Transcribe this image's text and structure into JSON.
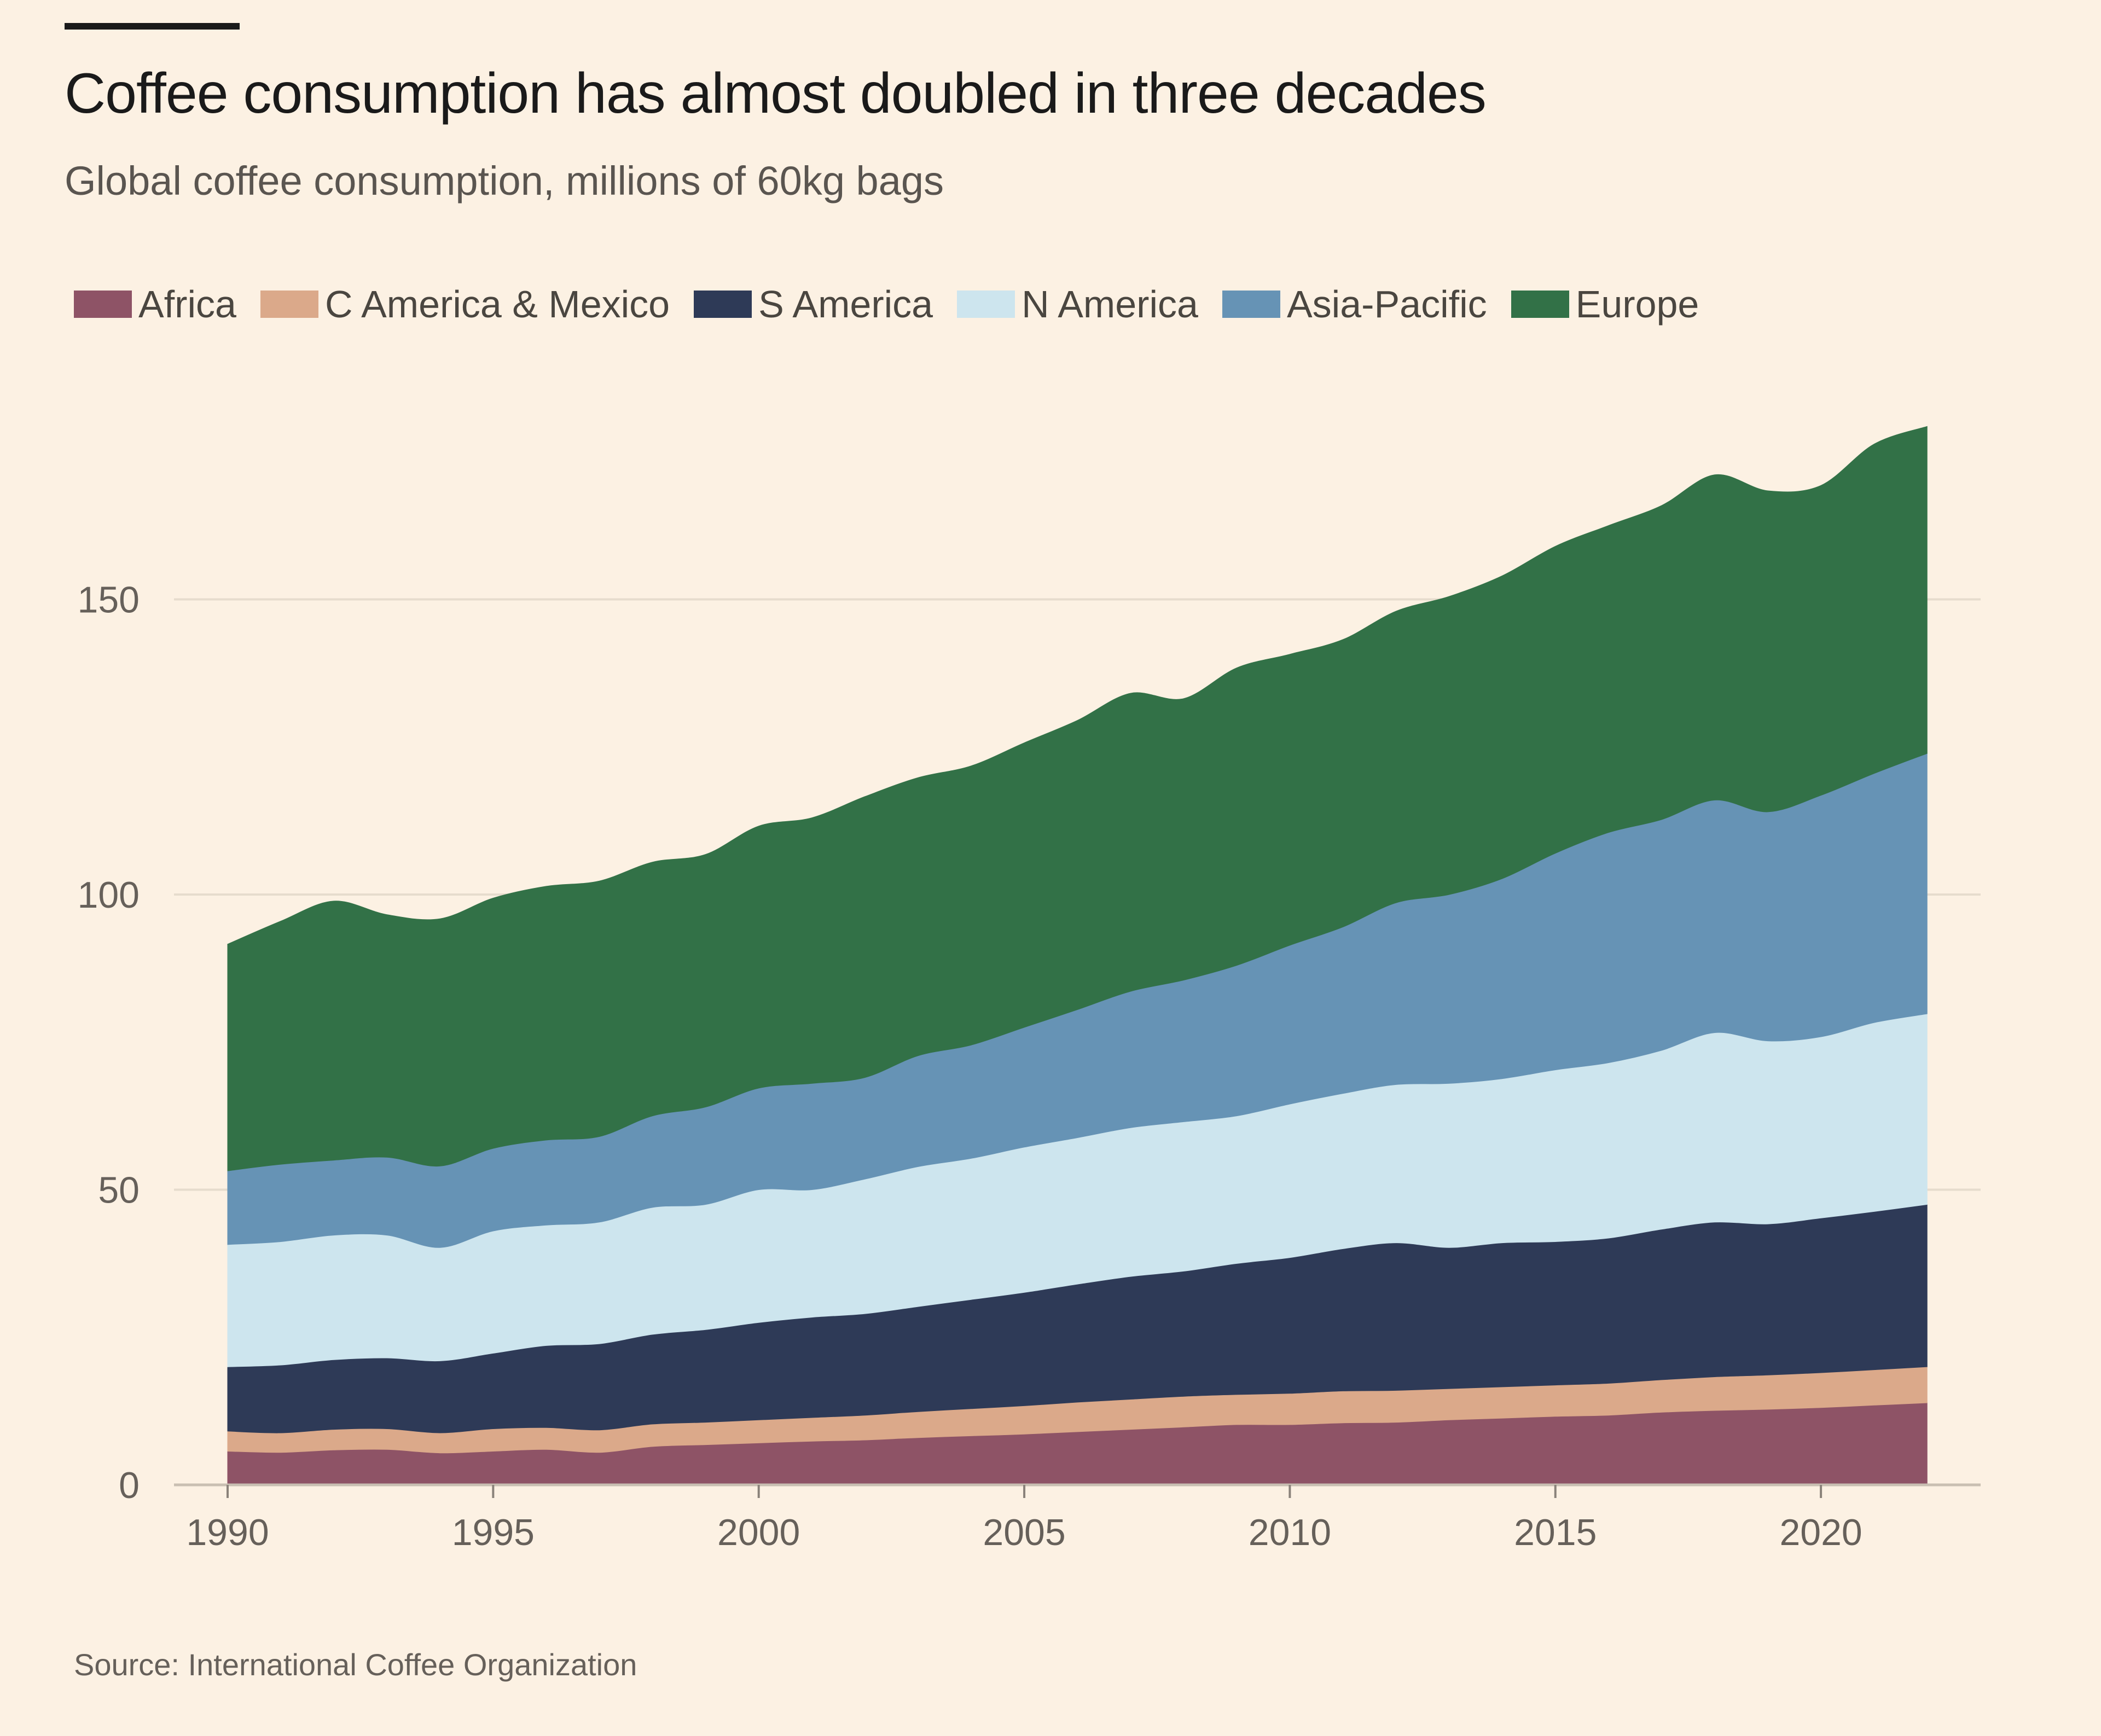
{
  "chart_data": {
    "type": "area",
    "stacked": true,
    "title": "Coffee consumption has almost doubled in three decades",
    "subtitle": "Global coffee consumption, millions of 60kg bags",
    "source": "Source: International Coffee Organization",
    "xlabel": "",
    "ylabel": "",
    "xlim": [
      1990,
      2022
    ],
    "ylim": [
      0,
      180
    ],
    "x_ticks": [
      "1990",
      "1995",
      "2000",
      "2005",
      "2010",
      "2015",
      "2020"
    ],
    "y_ticks": [
      "0",
      "50",
      "100",
      "150"
    ],
    "grid": "horizontal",
    "legend_placement": "top-left",
    "x": [
      1990,
      1991,
      1992,
      1993,
      1994,
      1995,
      1996,
      1997,
      1998,
      1999,
      2000,
      2001,
      2002,
      2003,
      2004,
      2005,
      2006,
      2007,
      2008,
      2009,
      2010,
      2011,
      2012,
      2013,
      2014,
      2015,
      2016,
      2017,
      2018,
      2019,
      2020,
      2021,
      2022
    ],
    "series": [
      {
        "name": "Africa",
        "color": "#8e5366",
        "values": [
          5.7,
          5.5,
          5.9,
          6.0,
          5.4,
          5.7,
          6.0,
          5.5,
          6.5,
          6.8,
          7.1,
          7.4,
          7.6,
          8.0,
          8.3,
          8.6,
          9.0,
          9.4,
          9.8,
          10.2,
          10.2,
          10.5,
          10.6,
          11.0,
          11.3,
          11.6,
          11.8,
          12.3,
          12.6,
          12.8,
          13.1,
          13.5,
          13.9
        ]
      },
      {
        "name": "C America & Mexico",
        "color": "#dba98a",
        "values": [
          3.4,
          3.3,
          3.5,
          3.5,
          3.4,
          3.8,
          3.7,
          3.8,
          3.8,
          3.8,
          3.9,
          4.0,
          4.2,
          4.4,
          4.6,
          4.8,
          5.0,
          5.1,
          5.2,
          5.1,
          5.3,
          5.4,
          5.4,
          5.3,
          5.3,
          5.3,
          5.4,
          5.5,
          5.7,
          5.8,
          5.9,
          6.0,
          6.1
        ]
      },
      {
        "name": "S America",
        "color": "#2e3a57",
        "values": [
          10.9,
          11.5,
          11.8,
          12.0,
          12.2,
          12.8,
          13.9,
          14.6,
          15.2,
          15.7,
          16.5,
          17.0,
          17.2,
          17.8,
          18.5,
          19.2,
          20.0,
          20.8,
          21.2,
          22.2,
          23.0,
          24.1,
          25.0,
          23.9,
          24.4,
          24.3,
          24.6,
          25.5,
          26.2,
          25.6,
          26.2,
          26.8,
          27.5
        ]
      },
      {
        "name": "N America",
        "color": "#cde5ee",
        "values": [
          20.7,
          20.9,
          21.1,
          20.8,
          19.2,
          20.7,
          20.4,
          20.6,
          21.5,
          21.2,
          22.5,
          21.6,
          22.8,
          23.7,
          23.9,
          24.6,
          24.8,
          25.2,
          25.3,
          25.0,
          26.0,
          26.3,
          26.8,
          27.8,
          27.8,
          29.1,
          29.7,
          30.3,
          32.1,
          31.0,
          30.7,
          32.0,
          32.3
        ]
      },
      {
        "name": "Asia-Pacific",
        "color": "#6693b5",
        "values": [
          12.5,
          13.1,
          12.7,
          13.2,
          13.8,
          14.0,
          14.4,
          14.5,
          15.5,
          16.5,
          17.2,
          18.0,
          17.2,
          18.8,
          19.2,
          20.3,
          21.7,
          23.1,
          24.0,
          25.5,
          26.9,
          28.2,
          30.8,
          32.0,
          33.9,
          36.7,
          39.0,
          39.1,
          39.4,
          38.8,
          40.9,
          42.2,
          44.1
        ]
      },
      {
        "name": "Europe",
        "color": "#327147",
        "values": [
          38.4,
          41.2,
          43.9,
          41.1,
          41.9,
          42.4,
          43.0,
          43.3,
          43.0,
          42.8,
          44.4,
          45.0,
          47.6,
          47.1,
          47.3,
          48.2,
          49.0,
          50.5,
          47.7,
          50.4,
          49.3,
          48.7,
          49.4,
          50.5,
          51.3,
          52.0,
          52.0,
          53.2,
          55.1,
          54.4,
          52.5,
          55.8,
          55.4
        ]
      }
    ]
  }
}
